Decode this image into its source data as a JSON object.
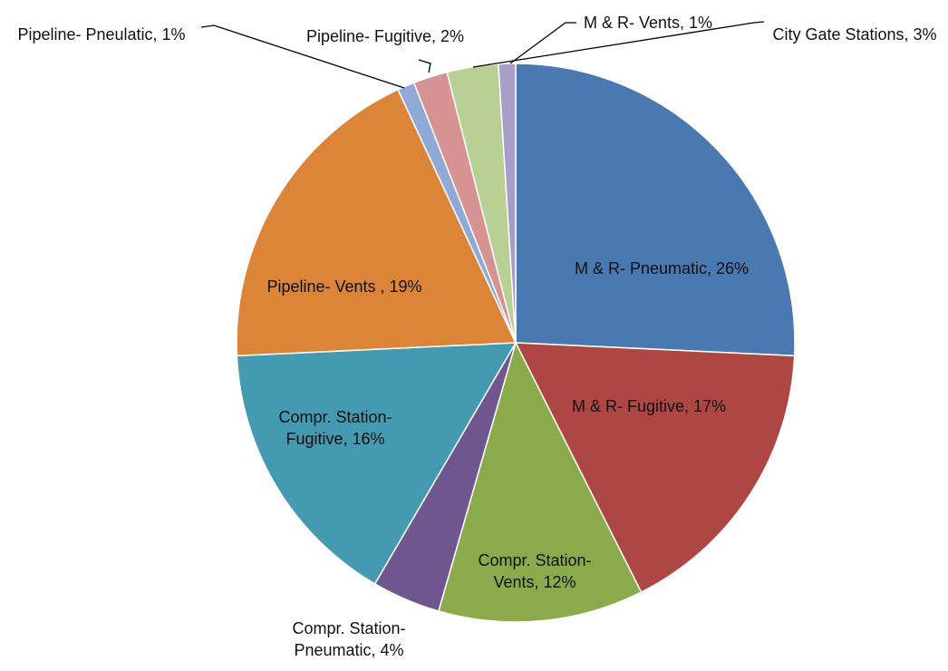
{
  "chart_data": {
    "type": "pie",
    "categories": [
      "M & R- Pneumatic,",
      "M & R- Fugitive,",
      "Compr. Station-Vents,",
      "Compr. Station-Pneumatic,",
      "Compr. Station-Fugitive,",
      "Pipeline- Vents ,",
      "Pipeline- Pneulatic,",
      "Pipeline- Fugitive,",
      "City Gate Stations,",
      "M & R- Vents,"
    ],
    "values": [
      26,
      17,
      12,
      4,
      16,
      19,
      1,
      2,
      3,
      1
    ],
    "value_labels": [
      "26%",
      "17%",
      "12%",
      "4%",
      "16%",
      "19%",
      "1%",
      "2%",
      "3%",
      "1%"
    ],
    "colors": [
      "#4a78b0",
      "#ae4644",
      "#8aaa4c",
      "#6f568f",
      "#449bb1",
      "#dc8539",
      "#90a9d6",
      "#d79292",
      "#b9d095",
      "#a79dc6"
    ]
  }
}
